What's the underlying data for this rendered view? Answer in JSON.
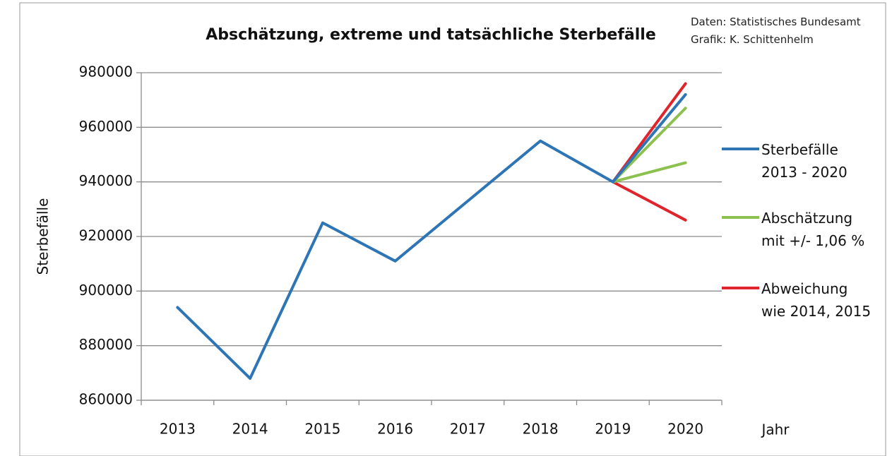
{
  "chart_data": {
    "type": "line",
    "title": "Abschätzung, extreme und tatsächliche Sterbefälle",
    "annotations": [
      "Daten: Statistisches Bundesamt",
      "Grafik: K. Schittenhelm"
    ],
    "x_label": "Jahr",
    "y_label": "Sterbefälle",
    "categories": [
      "2013",
      "2014",
      "2015",
      "2016",
      "2017",
      "2018",
      "2019",
      "2020"
    ],
    "series": [
      {
        "name": "Sterbefälle\n2013 - 2020",
        "color": "#2e75b6",
        "values": [
          894000,
          868000,
          925000,
          911000,
          933000,
          955000,
          940000,
          972000
        ]
      },
      {
        "name": "Abschätzung\nmit +/- 1,06 %",
        "color": "#8dc14f",
        "values": [
          null,
          null,
          null,
          null,
          null,
          null,
          940000,
          967000
        ],
        "values_lower": [
          null,
          null,
          null,
          null,
          null,
          null,
          940000,
          947000
        ]
      },
      {
        "name": "Abweichung\nwie 2014, 2015",
        "color": "#e0242b",
        "values": [
          null,
          null,
          null,
          null,
          null,
          null,
          940000,
          976000
        ],
        "values_lower": [
          null,
          null,
          null,
          null,
          null,
          null,
          940000,
          926000
        ]
      }
    ],
    "ylim": [
      860000,
      980000
    ],
    "yticks": [
      860000,
      880000,
      900000,
      920000,
      940000,
      960000,
      980000
    ],
    "grid": true,
    "legend": "right"
  }
}
